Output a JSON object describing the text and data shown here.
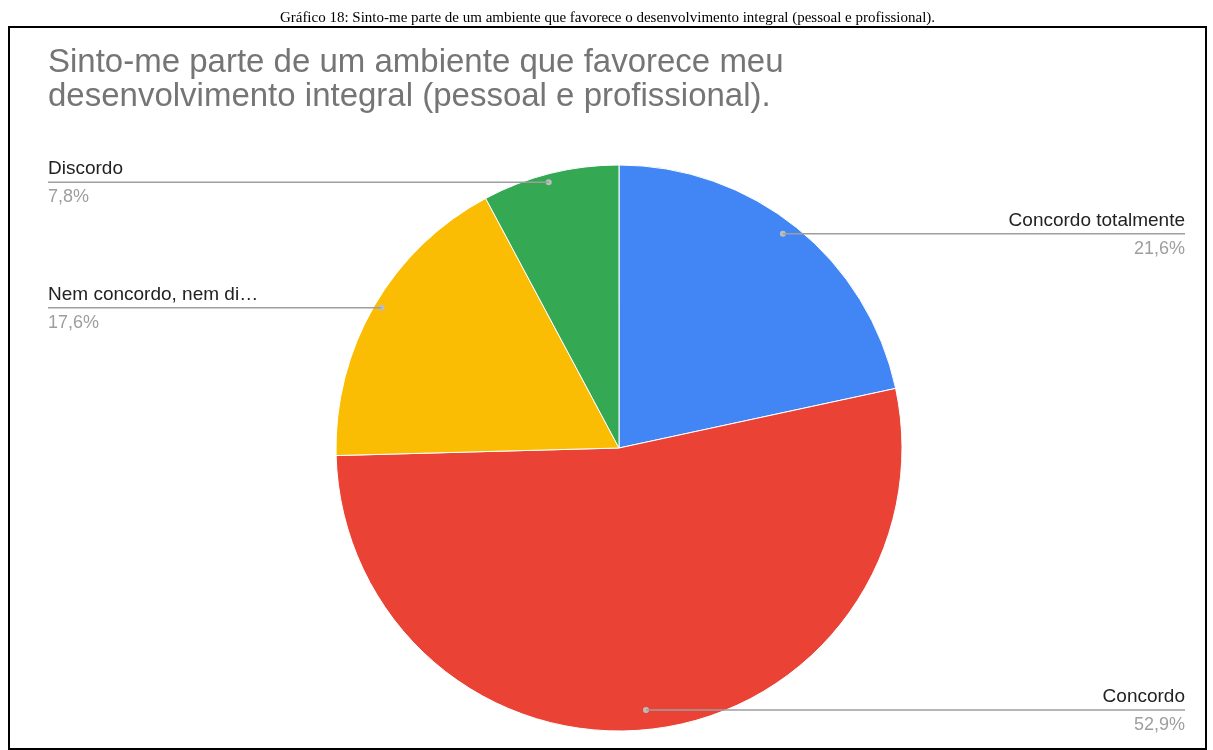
{
  "chart_data": {
    "type": "pie",
    "title": "Sinto-me parte de um ambiente que favorece meu desenvolvimento integral (pessoal e profissional).",
    "annotations": [
      "Gráfico 18: Sinto-me parte de um ambiente que favorece o desenvolvimento integral (pessoal e profissional)."
    ],
    "categories": [
      "Concordo totalmente",
      "Concordo",
      "Nem concordo, nem di…",
      "Discordo"
    ],
    "values": [
      21.6,
      52.9,
      17.6,
      7.8
    ],
    "value_labels": [
      "21,6%",
      "52,9%",
      "17,6%",
      "7,8%"
    ],
    "colors": [
      "#4285f4",
      "#ea4335",
      "#fbbc04",
      "#34a853"
    ],
    "legend": false
  }
}
